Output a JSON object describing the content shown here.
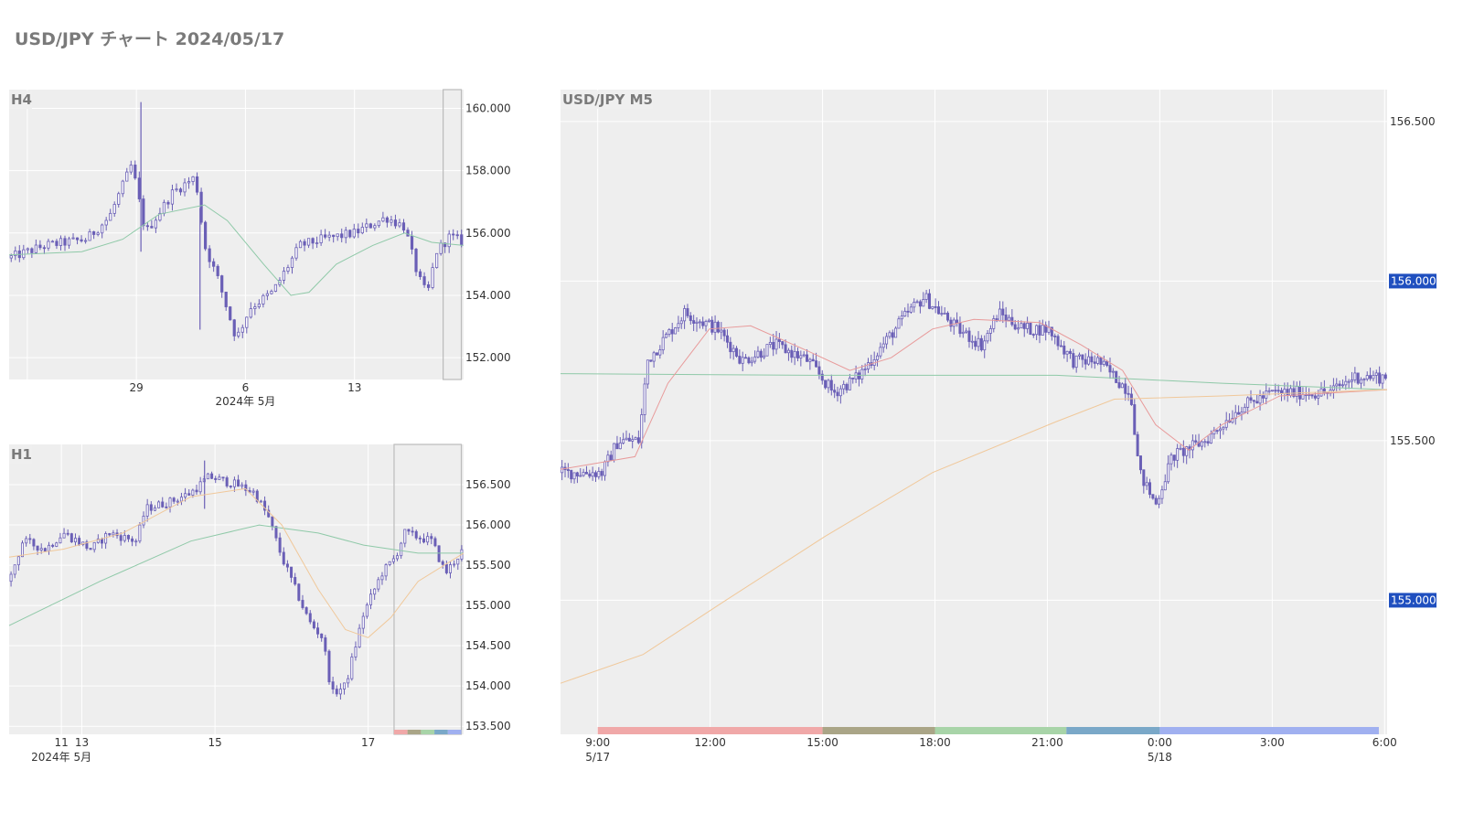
{
  "title": "USD/JPY チャート 2024/05/17",
  "colors": {
    "candle": "#6a5fb6",
    "ma_green": "#8fc9a8",
    "ma_red": "#e89a9a",
    "ma_orange": "#f0c89a",
    "badge": "#1f4fbf",
    "highlight_border": "#bbbbbb"
  },
  "chart_data": [
    {
      "id": "h4",
      "title": "H4",
      "type": "candlestick",
      "ylim": [
        151.3,
        160.6
      ],
      "y_ticks": [
        {
          "value": 152,
          "label": "152.000"
        },
        {
          "value": 154,
          "label": "154.000"
        },
        {
          "value": 156,
          "label": "156.000"
        },
        {
          "value": 158,
          "label": "158.000"
        },
        {
          "value": 160,
          "label": "160.000"
        }
      ],
      "x_ticks": [
        {
          "pos": 0.28,
          "label": "29"
        },
        {
          "pos": 0.52,
          "label": "6"
        },
        {
          "pos": 0.76,
          "label": "13"
        }
      ],
      "x_sublabel": {
        "pos": 0.52,
        "label": "2024年 5月"
      },
      "x_grid": [
        0.04,
        0.28,
        0.52,
        0.76
      ],
      "highlight": [
        0.955,
        0.995
      ],
      "close_path": [
        {
          "t": 0.0,
          "v": 155.2
        },
        {
          "t": 0.08,
          "v": 155.6
        },
        {
          "t": 0.17,
          "v": 155.8
        },
        {
          "t": 0.22,
          "v": 156.5
        },
        {
          "t": 0.27,
          "v": 158.2
        },
        {
          "t": 0.3,
          "v": 156.0
        },
        {
          "t": 0.36,
          "v": 157.3
        },
        {
          "t": 0.41,
          "v": 157.8
        },
        {
          "t": 0.43,
          "v": 155.6
        },
        {
          "t": 0.46,
          "v": 154.5
        },
        {
          "t": 0.5,
          "v": 152.6
        },
        {
          "t": 0.53,
          "v": 153.6
        },
        {
          "t": 0.58,
          "v": 154.1
        },
        {
          "t": 0.64,
          "v": 155.6
        },
        {
          "t": 0.69,
          "v": 155.8
        },
        {
          "t": 0.76,
          "v": 156.0
        },
        {
          "t": 0.83,
          "v": 156.5
        },
        {
          "t": 0.87,
          "v": 156.2
        },
        {
          "t": 0.9,
          "v": 154.6
        },
        {
          "t": 0.92,
          "v": 154.0
        },
        {
          "t": 0.94,
          "v": 155.4
        },
        {
          "t": 0.97,
          "v": 155.9
        },
        {
          "t": 1.0,
          "v": 155.7
        }
      ],
      "spikes": [
        {
          "t": 0.29,
          "hi": 160.2,
          "lo": 155.4
        },
        {
          "t": 0.42,
          "hi": 156.8,
          "lo": 152.9
        }
      ],
      "ma": [
        {
          "color_key": "ma_green",
          "points": [
            {
              "t": 0.0,
              "v": 155.3
            },
            {
              "t": 0.16,
              "v": 155.4
            },
            {
              "t": 0.25,
              "v": 155.8
            },
            {
              "t": 0.33,
              "v": 156.6
            },
            {
              "t": 0.43,
              "v": 156.9
            },
            {
              "t": 0.48,
              "v": 156.4
            },
            {
              "t": 0.56,
              "v": 155.0
            },
            {
              "t": 0.62,
              "v": 154.0
            },
            {
              "t": 0.66,
              "v": 154.1
            },
            {
              "t": 0.72,
              "v": 155.0
            },
            {
              "t": 0.8,
              "v": 155.6
            },
            {
              "t": 0.87,
              "v": 156.0
            },
            {
              "t": 0.93,
              "v": 155.7
            },
            {
              "t": 1.0,
              "v": 155.6
            }
          ]
        }
      ]
    },
    {
      "id": "h1",
      "title": "H1",
      "type": "candlestick",
      "ylim": [
        153.4,
        157.0
      ],
      "y_ticks": [
        {
          "value": 153.5,
          "label": "153.500"
        },
        {
          "value": 154.0,
          "label": "154.000"
        },
        {
          "value": 154.5,
          "label": "154.500"
        },
        {
          "value": 155.0,
          "label": "155.000"
        },
        {
          "value": 155.5,
          "label": "155.500"
        },
        {
          "value": 156.0,
          "label": "156.000"
        },
        {
          "value": 156.5,
          "label": "156.500"
        }
      ],
      "x_ticks": [
        {
          "pos": 0.115,
          "label": "11"
        },
        {
          "pos": 0.16,
          "label": "13"
        },
        {
          "pos": 0.453,
          "label": "15"
        },
        {
          "pos": 0.79,
          "label": "17"
        }
      ],
      "x_sublabel": {
        "pos": 0.115,
        "label": "2024年 5月"
      },
      "x_grid": [
        0.115,
        0.16,
        0.453,
        0.79
      ],
      "highlight": [
        0.847,
        0.995
      ],
      "close_path": [
        {
          "t": 0.0,
          "v": 155.3
        },
        {
          "t": 0.03,
          "v": 155.8
        },
        {
          "t": 0.08,
          "v": 155.7
        },
        {
          "t": 0.12,
          "v": 155.9
        },
        {
          "t": 0.18,
          "v": 155.7
        },
        {
          "t": 0.22,
          "v": 155.9
        },
        {
          "t": 0.28,
          "v": 155.8
        },
        {
          "t": 0.3,
          "v": 156.2
        },
        {
          "t": 0.36,
          "v": 156.3
        },
        {
          "t": 0.4,
          "v": 156.4
        },
        {
          "t": 0.44,
          "v": 156.6
        },
        {
          "t": 0.5,
          "v": 156.5
        },
        {
          "t": 0.54,
          "v": 156.4
        },
        {
          "t": 0.57,
          "v": 156.1
        },
        {
          "t": 0.6,
          "v": 155.6
        },
        {
          "t": 0.63,
          "v": 155.2
        },
        {
          "t": 0.66,
          "v": 154.8
        },
        {
          "t": 0.69,
          "v": 154.6
        },
        {
          "t": 0.71,
          "v": 153.9
        },
        {
          "t": 0.74,
          "v": 154.0
        },
        {
          "t": 0.78,
          "v": 154.9
        },
        {
          "t": 0.82,
          "v": 155.4
        },
        {
          "t": 0.85,
          "v": 155.6
        },
        {
          "t": 0.87,
          "v": 155.9
        },
        {
          "t": 0.93,
          "v": 155.8
        },
        {
          "t": 0.96,
          "v": 155.4
        },
        {
          "t": 1.0,
          "v": 155.7
        }
      ],
      "spikes": [
        {
          "t": 0.43,
          "hi": 156.8,
          "lo": 156.2
        }
      ],
      "ma": [
        {
          "color_key": "ma_green",
          "points": [
            {
              "t": 0.0,
              "v": 154.75
            },
            {
              "t": 0.2,
              "v": 155.3
            },
            {
              "t": 0.4,
              "v": 155.8
            },
            {
              "t": 0.55,
              "v": 156.0
            },
            {
              "t": 0.68,
              "v": 155.9
            },
            {
              "t": 0.78,
              "v": 155.75
            },
            {
              "t": 0.9,
              "v": 155.65
            },
            {
              "t": 1.0,
              "v": 155.65
            }
          ]
        },
        {
          "color_key": "ma_orange",
          "points": [
            {
              "t": 0.0,
              "v": 155.6
            },
            {
              "t": 0.12,
              "v": 155.7
            },
            {
              "t": 0.25,
              "v": 155.9
            },
            {
              "t": 0.4,
              "v": 156.35
            },
            {
              "t": 0.52,
              "v": 156.45
            },
            {
              "t": 0.6,
              "v": 156.0
            },
            {
              "t": 0.68,
              "v": 155.2
            },
            {
              "t": 0.74,
              "v": 154.7
            },
            {
              "t": 0.79,
              "v": 154.6
            },
            {
              "t": 0.84,
              "v": 154.85
            },
            {
              "t": 0.9,
              "v": 155.3
            },
            {
              "t": 1.0,
              "v": 155.65
            }
          ]
        }
      ]
    },
    {
      "id": "m5",
      "title": "USD/JPY M5",
      "type": "candlestick",
      "ylim": [
        154.58,
        156.6
      ],
      "y_ticks": [
        {
          "value": 155.5,
          "label": "155.500"
        },
        {
          "value": 156.5,
          "label": "156.500"
        }
      ],
      "y_badges": [
        {
          "value": 156.0,
          "label": "156.000"
        },
        {
          "value": 155.0,
          "label": "155.000"
        }
      ],
      "x_ticks": [
        {
          "pos": 0.045,
          "label": "9:00"
        },
        {
          "pos": 0.181,
          "label": "12:00"
        },
        {
          "pos": 0.317,
          "label": "15:00"
        },
        {
          "pos": 0.453,
          "label": "18:00"
        },
        {
          "pos": 0.589,
          "label": "21:00"
        },
        {
          "pos": 0.725,
          "label": "0:00"
        },
        {
          "pos": 0.861,
          "label": "3:00"
        },
        {
          "pos": 0.997,
          "label": "6:00"
        }
      ],
      "x_sublabels": [
        {
          "pos": 0.045,
          "label": "5/17"
        },
        {
          "pos": 0.725,
          "label": "5/18"
        }
      ],
      "x_grid": [
        0.045,
        0.181,
        0.317,
        0.453,
        0.589,
        0.725,
        0.861,
        0.997
      ],
      "sessions": [
        {
          "from": 0.045,
          "to": 0.317,
          "color": "#f0a8a8"
        },
        {
          "from": 0.317,
          "to": 0.453,
          "color": "#aaa587"
        },
        {
          "from": 0.453,
          "to": 0.612,
          "color": "#a8d4a8"
        },
        {
          "from": 0.612,
          "to": 0.725,
          "color": "#7aa8c8"
        },
        {
          "from": 0.725,
          "to": 0.99,
          "color": "#a0b0f0"
        }
      ],
      "close_path": [
        {
          "t": 0.0,
          "v": 155.4
        },
        {
          "t": 0.05,
          "v": 155.4
        },
        {
          "t": 0.07,
          "v": 155.5
        },
        {
          "t": 0.095,
          "v": 155.5
        },
        {
          "t": 0.105,
          "v": 155.75
        },
        {
          "t": 0.12,
          "v": 155.8
        },
        {
          "t": 0.15,
          "v": 155.9
        },
        {
          "t": 0.19,
          "v": 155.85
        },
        {
          "t": 0.22,
          "v": 155.75
        },
        {
          "t": 0.26,
          "v": 155.8
        },
        {
          "t": 0.3,
          "v": 155.75
        },
        {
          "t": 0.33,
          "v": 155.65
        },
        {
          "t": 0.36,
          "v": 155.7
        },
        {
          "t": 0.39,
          "v": 155.8
        },
        {
          "t": 0.42,
          "v": 155.9
        },
        {
          "t": 0.44,
          "v": 155.95
        },
        {
          "t": 0.48,
          "v": 155.85
        },
        {
          "t": 0.51,
          "v": 155.8
        },
        {
          "t": 0.53,
          "v": 155.9
        },
        {
          "t": 0.56,
          "v": 155.85
        },
        {
          "t": 0.59,
          "v": 155.85
        },
        {
          "t": 0.62,
          "v": 155.75
        },
        {
          "t": 0.65,
          "v": 155.75
        },
        {
          "t": 0.69,
          "v": 155.65
        },
        {
          "t": 0.7,
          "v": 155.4
        },
        {
          "t": 0.72,
          "v": 155.3
        },
        {
          "t": 0.74,
          "v": 155.45
        },
        {
          "t": 0.78,
          "v": 155.5
        },
        {
          "t": 0.82,
          "v": 155.6
        },
        {
          "t": 0.86,
          "v": 155.65
        },
        {
          "t": 0.9,
          "v": 155.65
        },
        {
          "t": 0.93,
          "v": 155.65
        },
        {
          "t": 0.96,
          "v": 155.7
        },
        {
          "t": 1.0,
          "v": 155.7
        }
      ],
      "spikes": [],
      "ma": [
        {
          "color_key": "ma_green",
          "points": [
            {
              "t": 0.0,
              "v": 155.71
            },
            {
              "t": 0.3,
              "v": 155.705
            },
            {
              "t": 0.6,
              "v": 155.705
            },
            {
              "t": 0.8,
              "v": 155.68
            },
            {
              "t": 1.0,
              "v": 155.66
            }
          ]
        },
        {
          "color_key": "ma_red",
          "points": [
            {
              "t": 0.0,
              "v": 155.41
            },
            {
              "t": 0.09,
              "v": 155.45
            },
            {
              "t": 0.13,
              "v": 155.68
            },
            {
              "t": 0.18,
              "v": 155.85
            },
            {
              "t": 0.23,
              "v": 155.86
            },
            {
              "t": 0.3,
              "v": 155.78
            },
            {
              "t": 0.35,
              "v": 155.72
            },
            {
              "t": 0.4,
              "v": 155.76
            },
            {
              "t": 0.45,
              "v": 155.85
            },
            {
              "t": 0.5,
              "v": 155.88
            },
            {
              "t": 0.58,
              "v": 155.87
            },
            {
              "t": 0.63,
              "v": 155.8
            },
            {
              "t": 0.68,
              "v": 155.72
            },
            {
              "t": 0.72,
              "v": 155.55
            },
            {
              "t": 0.76,
              "v": 155.47
            },
            {
              "t": 0.8,
              "v": 155.55
            },
            {
              "t": 0.87,
              "v": 155.64
            },
            {
              "t": 1.0,
              "v": 155.66
            }
          ]
        },
        {
          "color_key": "ma_orange",
          "points": [
            {
              "t": 0.0,
              "v": 154.74
            },
            {
              "t": 0.1,
              "v": 154.83
            },
            {
              "t": 0.2,
              "v": 155.0
            },
            {
              "t": 0.32,
              "v": 155.2
            },
            {
              "t": 0.45,
              "v": 155.4
            },
            {
              "t": 0.6,
              "v": 155.56
            },
            {
              "t": 0.67,
              "v": 155.63
            },
            {
              "t": 0.8,
              "v": 155.64
            },
            {
              "t": 1.0,
              "v": 155.66
            }
          ]
        }
      ]
    }
  ]
}
